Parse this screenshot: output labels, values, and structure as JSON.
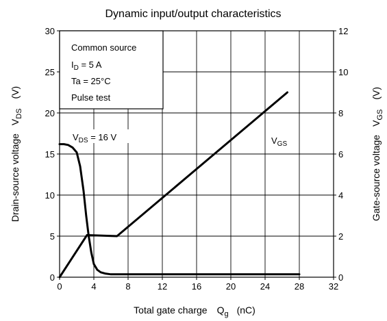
{
  "chart_data": {
    "type": "line",
    "title": "Dynamic input/output characteristics",
    "xlabel": {
      "main": "Total gate charge",
      "symbol": "Q",
      "subscript": "g",
      "unit": "(nC)"
    },
    "ylabel_left": {
      "main": "Drain-source voltage",
      "symbol": "V",
      "subscript": "DS",
      "unit": "(V)"
    },
    "ylabel_right": {
      "main": "Gate-source voltage",
      "symbol": "V",
      "subscript": "GS",
      "unit": "(V)"
    },
    "xlim": [
      0,
      32
    ],
    "ylim_left": [
      0,
      30
    ],
    "ylim_right": [
      0,
      12
    ],
    "x_ticks": [
      "0",
      "4",
      "8",
      "12",
      "16",
      "20",
      "24",
      "28",
      "32"
    ],
    "y_left_ticks": [
      "0",
      "5",
      "10",
      "15",
      "20",
      "25",
      "30"
    ],
    "y_right_ticks": [
      "0",
      "2",
      "4",
      "6",
      "8",
      "10",
      "12"
    ],
    "grid": true,
    "conditions": [
      {
        "text": "Common source"
      },
      {
        "symbol": "I",
        "subscript": "D",
        "text": " = 5 A"
      },
      {
        "text": "Ta = 25°C"
      },
      {
        "text": "Pulse test"
      }
    ],
    "series": [
      {
        "name_symbol": "V",
        "name_subscript": "DS",
        "name_suffix": " = 16 V",
        "axis": "left",
        "x": [
          0,
          0.5,
          1.0,
          1.5,
          2.0,
          2.4,
          2.8,
          3.1,
          3.4,
          3.7,
          4.0,
          4.4,
          4.8,
          5.3,
          6.0,
          8.0,
          12.0,
          16.0,
          20.0,
          24.0,
          28.0
        ],
        "y": [
          16.2,
          16.2,
          16.1,
          15.8,
          15.2,
          13.5,
          10.5,
          7.5,
          5.0,
          3.0,
          1.6,
          0.9,
          0.6,
          0.45,
          0.35,
          0.35,
          0.35,
          0.35,
          0.35,
          0.35,
          0.35
        ]
      },
      {
        "name_symbol": "V",
        "name_subscript": "GS",
        "name_suffix": "",
        "axis": "right",
        "x": [
          0,
          3.2,
          6.7,
          26.6
        ],
        "y": [
          0,
          2.05,
          2.0,
          9.0
        ]
      }
    ]
  }
}
